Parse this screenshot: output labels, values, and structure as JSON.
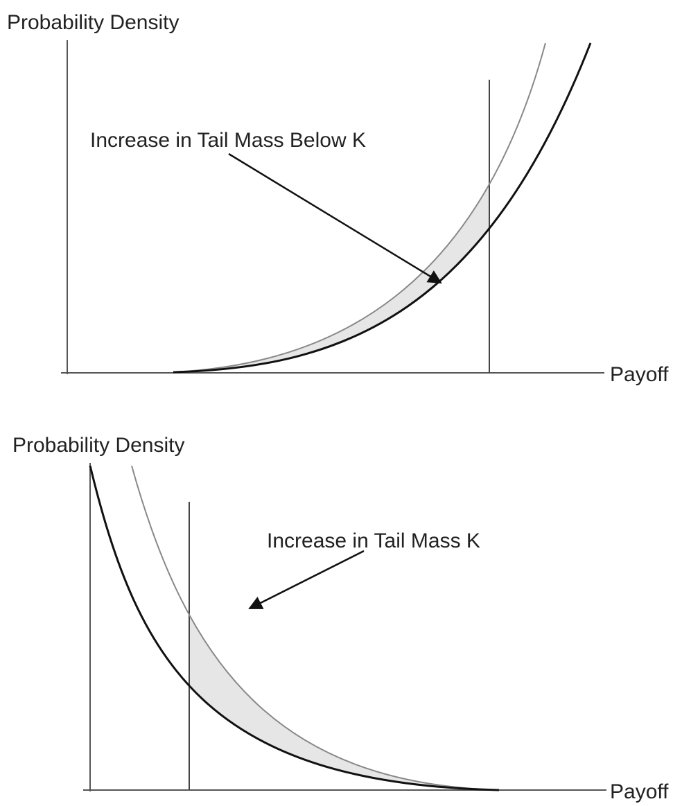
{
  "panels": [
    {
      "y_label": "Probability Density",
      "x_label": "Payoff",
      "annotation": "Increase in Tail Mass Below K"
    },
    {
      "y_label": "Probability Density",
      "x_label": "Payoff",
      "annotation": "Increase in Tail Mass K"
    }
  ]
}
